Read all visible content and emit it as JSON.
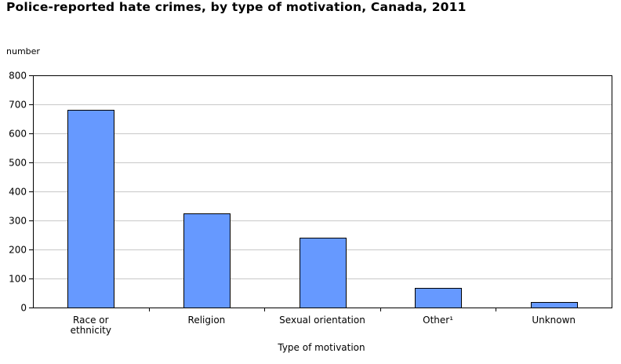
{
  "chart_data": {
    "type": "bar",
    "title": "Police-reported hate crimes, by type of motivation, Canada, 2011",
    "ylabel": "number",
    "xlabel": "Type of motivation",
    "ylim": [
      0,
      800
    ],
    "yticks": [
      "0",
      "100",
      "200",
      "300",
      "400",
      "500",
      "600",
      "700",
      "800"
    ],
    "categories": [
      "Race or ethnicity",
      "Religion",
      "Sexual orientation",
      "Other¹",
      "Unknown"
    ],
    "category_lines": [
      [
        "Race or",
        "ethnicity"
      ],
      [
        "Religion"
      ],
      [
        "Sexual orientation"
      ],
      [
        "Other¹"
      ],
      [
        "Unknown"
      ]
    ],
    "values": [
      680,
      325,
      240,
      67,
      20
    ],
    "bar_color": "#6699ff",
    "grid": true,
    "legend": "none"
  }
}
